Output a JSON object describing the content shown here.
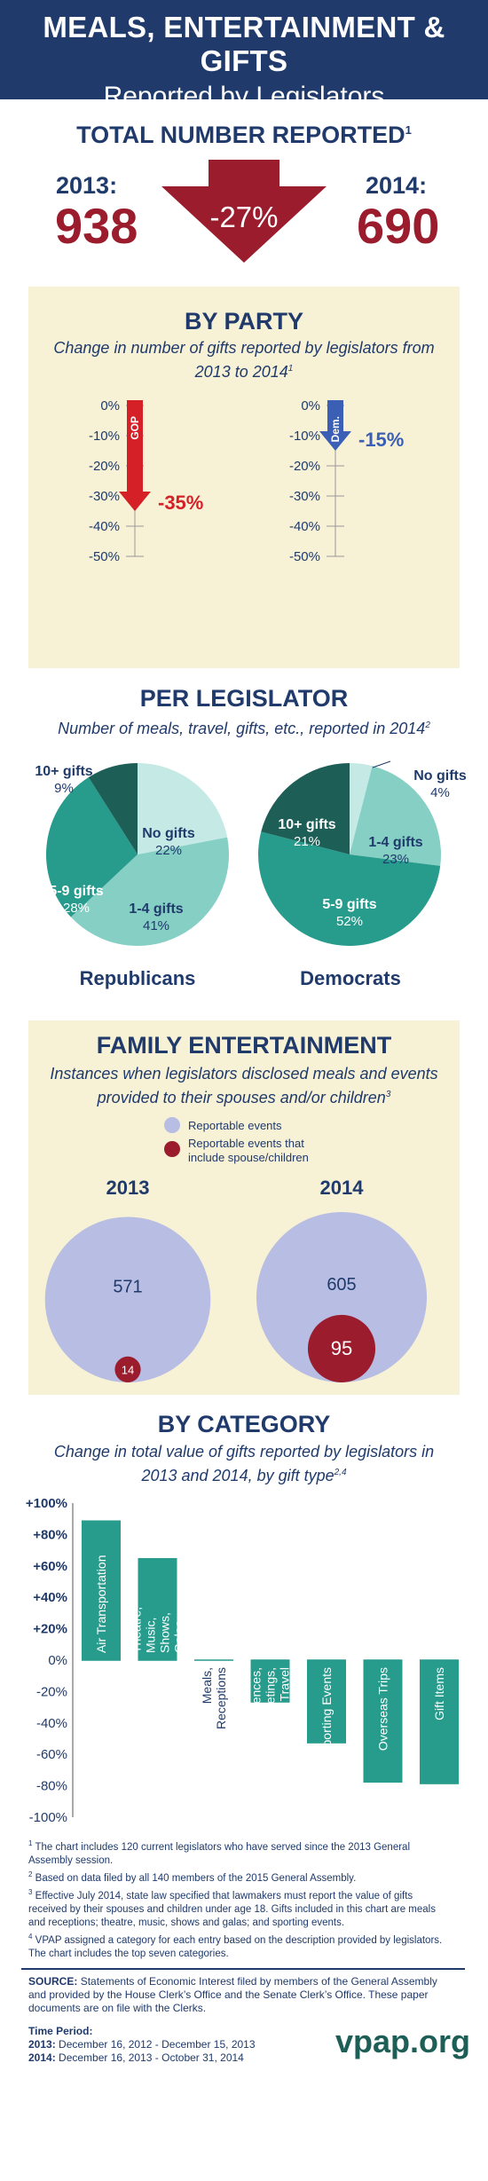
{
  "header": {
    "title": "MEALS, ENTERTAINMENT & GIFTS",
    "subtitle": "Reported by Legislators"
  },
  "total": {
    "title": "TOTAL NUMBER REPORTED",
    "title_note": "1",
    "year1_label": "2013:",
    "year1_value": "938",
    "year2_label": "2014:",
    "year2_value": "690",
    "change_label": "-27%"
  },
  "colors": {
    "navy": "#1f3a6b",
    "maroon": "#9b1c2c",
    "gop": "#d62027",
    "dem": "#3a5fb4",
    "teal_dark": "#1d5e57",
    "teal": "#279b8c",
    "teal_light": "#86cfc5",
    "teal_pale": "#c5e9e4",
    "lavender": "#b8bde3",
    "panel": "#f7f1d6"
  },
  "party": {
    "title": "BY PARTY",
    "subtitle_line1": "Change in number of gifts reported by legislators from",
    "subtitle_line2": "2013 to 2014",
    "subtitle_note": "1",
    "ticks": [
      "0%",
      "-10%",
      "-20%",
      "-30%",
      "-40%",
      "-50%"
    ],
    "gop_tag": "GOP",
    "dem_tag": "Dem.",
    "gop_label": "-35%",
    "dem_label": "-15%"
  },
  "per_legislator": {
    "title": "PER LEGISLATOR",
    "subtitle": "Number of meals, travel, gifts, etc., reported in 2014",
    "subtitle_note": "2",
    "rep_title": "Republicans",
    "dem_title": "Democrats"
  },
  "family": {
    "title": "FAMILY ENTERTAINMENT",
    "subtitle_line1": "Instances when legislators disclosed meals and events",
    "subtitle_line2": "provided to their spouses and/or children",
    "subtitle_note": "3",
    "legend1": "Reportable events",
    "legend2_line1": "Reportable events that",
    "legend2_line2": "include spouse/children"
  },
  "category": {
    "title": "BY CATEGORY",
    "subtitle_line1": "Change in total value of gifts reported by legislators in",
    "subtitle_line2": "2013 and 2014, by gift type",
    "subtitle_note": "2,4"
  },
  "footnotes": {
    "n1": "The chart includes 120 current legislators who have served since the 2013 General Assembly session.",
    "n2": "Based on data filed by all 140 members of the 2015 General Assembly.",
    "n3": "Effective July 2014, state law specified that lawmakers must report the value of gifts received by their spouses and children under age 18. Gifts included in this chart are meals and receptions; theatre, music, shows and galas; and sporting events.",
    "n4": "VPAP assigned a category for each entry based on the description provided by legislators. The chart includes the top seven categories."
  },
  "source": {
    "label": "SOURCE:",
    "text": "Statements of Economic Interest filed by members of the General Assembly and provided by the House Clerk’s Office and the Senate Clerk’s Office. These paper documents are on file with the Clerks.",
    "period_label": "Time Period:",
    "period_2013_label": "2013:",
    "period_2013": "December 16, 2012 - December 15, 2013",
    "period_2014_label": "2014:",
    "period_2014": "December 16, 2013 - October 31, 2014",
    "brand": "vpap.org"
  },
  "chart_data": [
    {
      "type": "bar",
      "title": "BY PARTY",
      "categories": [
        "GOP",
        "Dem."
      ],
      "values": [
        -35,
        -15
      ],
      "ylim": [
        -50,
        0
      ],
      "tick_labels": [
        "0%",
        "-10%",
        "-20%",
        "-30%",
        "-40%",
        "-50%"
      ]
    },
    {
      "type": "pie",
      "title": "Republicans",
      "labels": [
        "No gifts",
        "1-4 gifts",
        "5-9 gifts",
        "10+ gifts"
      ],
      "values": [
        22,
        41,
        28,
        9
      ],
      "value_labels": [
        "22%",
        "41%",
        "28%",
        "9%"
      ]
    },
    {
      "type": "pie",
      "title": "Democrats",
      "labels": [
        "No gifts",
        "1-4 gifts",
        "5-9 gifts",
        "10+ gifts"
      ],
      "values": [
        4,
        23,
        52,
        21
      ],
      "value_labels": [
        "4%",
        "23%",
        "52%",
        "21%"
      ]
    },
    {
      "type": "bubble",
      "title": "FAMILY ENTERTAINMENT",
      "categories": [
        "2013",
        "2014"
      ],
      "series": [
        {
          "name": "Reportable events",
          "values": [
            571,
            605
          ]
        },
        {
          "name": "Reportable events that include spouse/children",
          "values": [
            14,
            95
          ]
        }
      ]
    },
    {
      "type": "bar",
      "title": "BY CATEGORY",
      "categories": [
        "Air Transportation",
        "Theatre, Music, Shows, Galas",
        "Meals, Receptions",
        "Conferences, Meetings, Travel",
        "Sporting Events",
        "Overseas Trips",
        "Gift Items"
      ],
      "values": [
        89,
        65,
        0,
        -27,
        -53,
        -78,
        -79
      ],
      "ylim": [
        -100,
        100
      ],
      "tick_labels": [
        "+100%",
        "+80%",
        "+60%",
        "+40%",
        "+20%",
        "0%",
        "-20%",
        "-40%",
        "-60%",
        "-80%",
        "-100%"
      ],
      "grid": false
    }
  ]
}
